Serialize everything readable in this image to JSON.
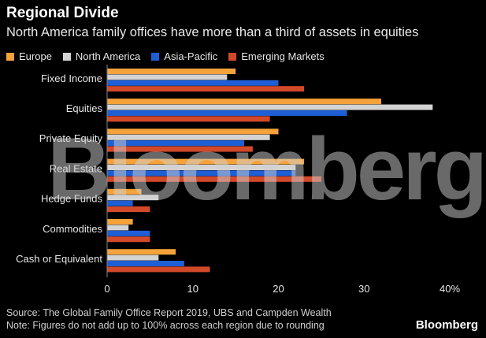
{
  "header": {
    "title": "Regional Divide",
    "subtitle": "North America family offices have more than a third of assets in equities"
  },
  "legend": [
    {
      "label": "Europe",
      "color": "#f5a23a"
    },
    {
      "label": "North America",
      "color": "#d3d3d3"
    },
    {
      "label": "Asia-Pacific",
      "color": "#1f5fd6"
    },
    {
      "label": "Emerging Markets",
      "color": "#d2492a"
    }
  ],
  "chart_data": {
    "type": "bar",
    "orientation": "horizontal",
    "categories": [
      "Fixed Income",
      "Equities",
      "Private Equity",
      "Real Estate",
      "Hedge Funds",
      "Commodities",
      "Cash or Equivalent"
    ],
    "series": [
      {
        "name": "Europe",
        "values": [
          15,
          32,
          20,
          23,
          4,
          3,
          8
        ]
      },
      {
        "name": "North America",
        "values": [
          14,
          38,
          19,
          22,
          6,
          2.5,
          6
        ]
      },
      {
        "name": "Asia-Pacific",
        "values": [
          20,
          28,
          16,
          22,
          3,
          5,
          9
        ]
      },
      {
        "name": "Emerging Markets",
        "values": [
          23,
          19,
          17,
          25,
          5,
          5,
          12
        ]
      }
    ],
    "xlim": [
      0,
      40
    ],
    "xticks": [
      "0",
      "10",
      "20",
      "30",
      "40%"
    ],
    "xtick_values": [
      0,
      10,
      20,
      30,
      40
    ],
    "title": "Regional Divide",
    "subtitle": "North America family offices have more than a third of assets in equities",
    "legend_position": "top-left",
    "grid": false
  },
  "footer": {
    "source": "Source: The Global Family Office Report 2019, UBS and Campden Wealth",
    "note": "Note: Figures do not add up to 100% across each region due to rounding"
  },
  "watermark": "Bloomberg",
  "logo": "Bloomberg"
}
